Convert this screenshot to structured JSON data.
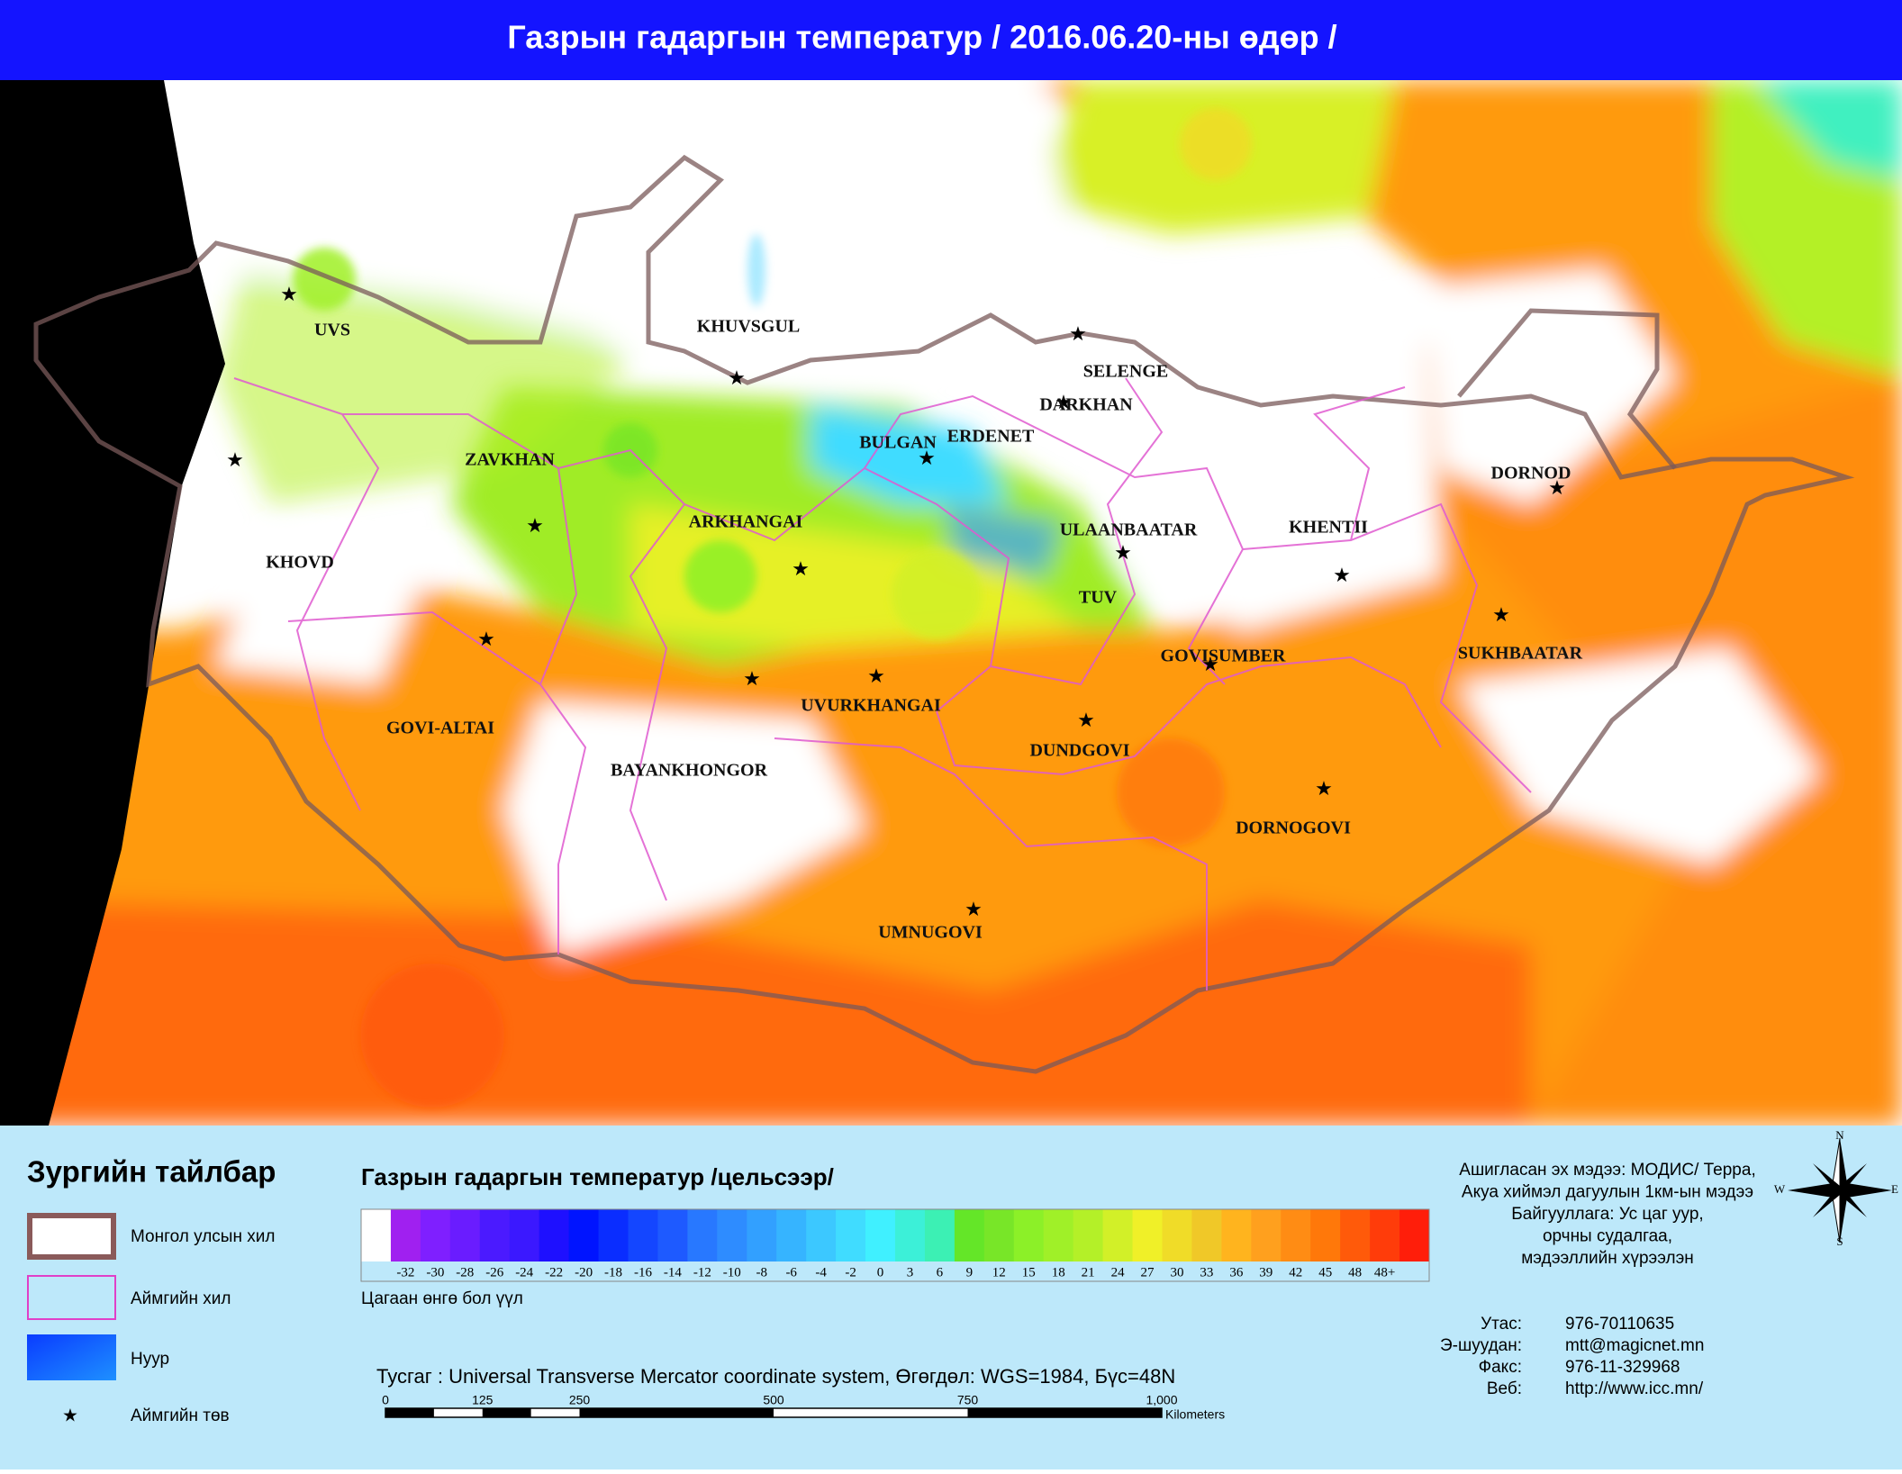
{
  "header": {
    "title": "Газрын гадаргын температур / 2016.06.20-ны өдөр /"
  },
  "map": {
    "provinces": [
      "UVS",
      "KHUVSGUL",
      "SELENGE",
      "DARKHAN",
      "BULGAN",
      "ERDENET",
      "ZAVKHAN",
      "DORNOD",
      "ARKHANGAI",
      "ULAANBAATAR",
      "KHENTII",
      "KHOVD",
      "TUV",
      "GOVISUMBER",
      "SUKHBAATAR",
      "GOVI-ALTAI",
      "UVURKHANGAI",
      "BAYANKHONGOR",
      "DUNDGOVI",
      "DORNOGOVI",
      "UMNUGOVI"
    ]
  },
  "legend": {
    "title": "Зургийн тайлбар",
    "items": [
      "Монгол улсын хил",
      "Аймгийн хил",
      "Нуур",
      "Аймгийн төв"
    ]
  },
  "colorbar": {
    "title": "Газрын гадаргын температур /цельсээр/",
    "colors": [
      "#ffffff",
      "#a020f0",
      "#7f1fff",
      "#6a1cff",
      "#4b1aff",
      "#3b18ff",
      "#1e10ff",
      "#0014ff",
      "#0a2dff",
      "#1446ff",
      "#1e5aff",
      "#2878ff",
      "#2e8cff",
      "#32a0ff",
      "#36b4ff",
      "#3cc8ff",
      "#40dcff",
      "#40f0ff",
      "#3cf0d8",
      "#3cf0b4",
      "#64e628",
      "#78e628",
      "#8cf028",
      "#a0f028",
      "#b4f028",
      "#d2f028",
      "#f0f028",
      "#f0dc28",
      "#f0c828",
      "#ffb41e",
      "#ffa01e",
      "#ff8c14",
      "#ff780a",
      "#ff5a0a",
      "#ff3c0a",
      "#ff1e0a"
    ],
    "labels": [
      "-32",
      "-30",
      "-28",
      "-26",
      "-24",
      "-22",
      "-20",
      "-18",
      "-16",
      "-14",
      "-12",
      "-10",
      "-8",
      "-6",
      "-4",
      "-2",
      "0",
      "3",
      "6",
      "9",
      "12",
      "15",
      "18",
      "21",
      "24",
      "27",
      "30",
      "33",
      "36",
      "39",
      "42",
      "45",
      "48",
      "48+"
    ],
    "note": "Цагаан өнгө бол үүл"
  },
  "projection": "Тусгаг : Universal Transverse Mercator coordinate system, Өгөгдөл: WGS=1984, Бүс=48N",
  "scale_bar": {
    "labels": [
      "0",
      "125",
      "250",
      "500",
      "750",
      "1,000"
    ],
    "unit": "Kilometers"
  },
  "info": [
    "Ашигласан эх мэдээ: МОДИС/ Терра,",
    "Акуа хиймэл дагуулын 1км-ын мэдээ",
    "Байгууллага: Ус цаг уур,",
    "орчны судалгаа,",
    "мэдээллийн хүрээлэн"
  ],
  "contacts": [
    {
      "label": "Утас:",
      "value": "976-70110635"
    },
    {
      "label": "Э-шуудан:",
      "value": "mtt@magicnet.mn"
    },
    {
      "label": "Факс:",
      "value": "976-11-329968"
    },
    {
      "label": "Веб:",
      "value": "http://www.icc.mn/"
    }
  ],
  "compass": [
    "N",
    "E",
    "S",
    "W"
  ]
}
